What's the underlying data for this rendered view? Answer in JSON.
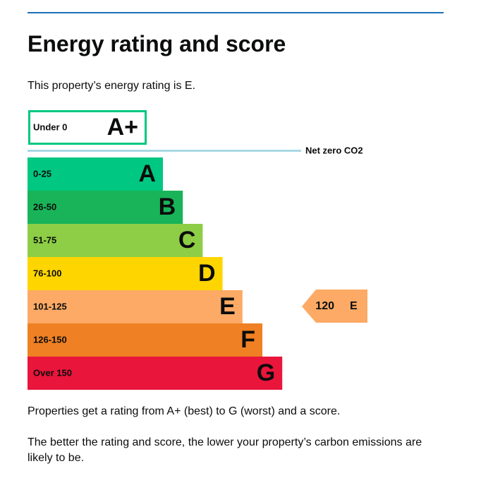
{
  "header": {
    "title": "Energy rating and score"
  },
  "intro": "This property’s energy rating is E.",
  "top_band": {
    "range": "Under 0",
    "letter": "A+"
  },
  "net_zero": "Net zero CO2",
  "bands": [
    {
      "range": "0-25",
      "letter": "A"
    },
    {
      "range": "26-50",
      "letter": "B"
    },
    {
      "range": "51-75",
      "letter": "C"
    },
    {
      "range": "76-100",
      "letter": "D"
    },
    {
      "range": "101-125",
      "letter": "E"
    },
    {
      "range": "126-150",
      "letter": "F"
    },
    {
      "range": "Over 150",
      "letter": "G"
    }
  ],
  "current": {
    "score": 120,
    "rating": "E"
  },
  "paragraphs": [
    "Properties get a rating from A+ (best) to G (worst) and a score.",
    "The better the rating and score, the lower your property’s carbon emissions are likely to be."
  ]
}
